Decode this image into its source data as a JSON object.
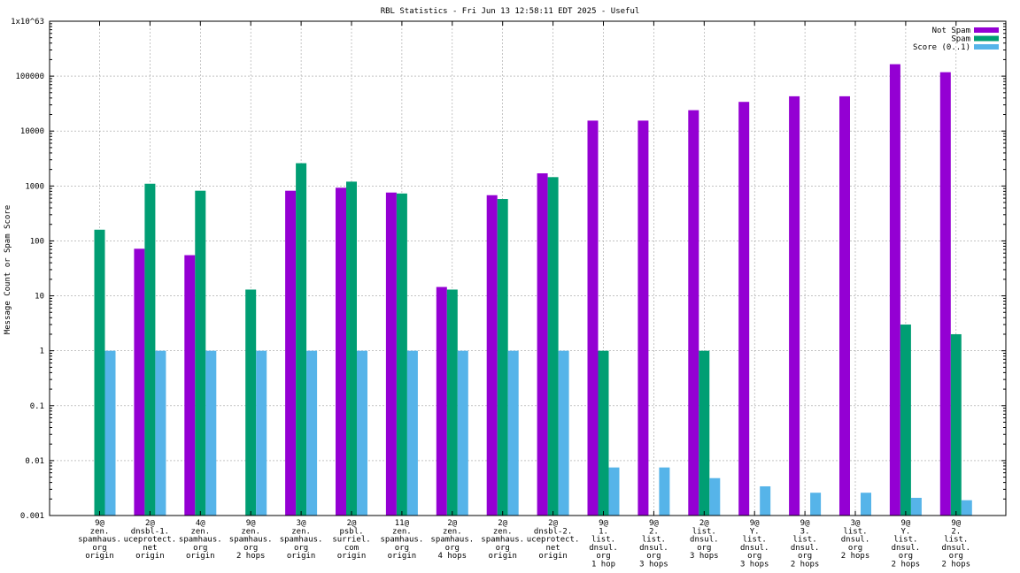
{
  "chart_data": {
    "type": "bar",
    "title": "RBL Statistics - Fri Jun 13 12:58:11 EDT 2025 - Useful",
    "xlabel": "",
    "ylabel": "Message Count or Spam Score",
    "yscale": "log",
    "ylim": [
      0.001,
      1e+63
    ],
    "yticks": [
      "0.001",
      "0.01",
      "0.1",
      "1",
      "10",
      "100",
      "1000",
      "10000",
      "100000",
      "1x10^63"
    ],
    "ytick_values": [
      0.001,
      0.01,
      0.1,
      1,
      10,
      100,
      1000,
      10000,
      100000,
      1e+63
    ],
    "grid": true,
    "legend": "top-right",
    "categories": [
      [
        "9@",
        "zen.",
        "spamhaus.",
        "org",
        "origin"
      ],
      [
        "2@",
        "dnsbl-1.",
        "uceprotect.",
        "net",
        "origin"
      ],
      [
        "4@",
        "zen.",
        "spamhaus.",
        "org",
        "origin"
      ],
      [
        "9@",
        "zen.",
        "spamhaus.",
        "org",
        "2 hops"
      ],
      [
        "3@",
        "zen.",
        "spamhaus.",
        "org",
        "origin"
      ],
      [
        "2@",
        "psbl.",
        "surriel.",
        "com",
        "origin"
      ],
      [
        "11@",
        "zen.",
        "spamhaus.",
        "org",
        "origin"
      ],
      [
        "2@",
        "zen.",
        "spamhaus.",
        "org",
        "4 hops"
      ],
      [
        "2@",
        "zen.",
        "spamhaus.",
        "org",
        "origin"
      ],
      [
        "2@",
        "dnsbl-2.",
        "uceprotect.",
        "net",
        "origin"
      ],
      [
        "9@",
        "1.",
        "list.",
        "dnsul.",
        "org",
        "1 hop"
      ],
      [
        "9@",
        "2.",
        "list.",
        "dnsul.",
        "org",
        "3 hops"
      ],
      [
        "2@",
        "list.",
        "dnsul.",
        "org",
        "3 hops"
      ],
      [
        "9@",
        "Y.",
        "list.",
        "dnsul.",
        "org",
        "3 hops"
      ],
      [
        "9@",
        "3.",
        "list.",
        "dnsul.",
        "org",
        "2 hops"
      ],
      [
        "3@",
        "list.",
        "dnsul.",
        "org",
        "2 hops"
      ],
      [
        "9@",
        "Y.",
        "list.",
        "dnsul.",
        "org",
        "2 hops"
      ],
      [
        "9@",
        "2.",
        "list.",
        "dnsul.",
        "org",
        "2 hops"
      ]
    ],
    "series": [
      {
        "name": "Not Spam",
        "color": "#9400d3",
        "values": [
          null,
          72,
          55,
          null,
          820,
          930,
          760,
          14.5,
          680,
          1700,
          15500,
          15500,
          24000,
          34000,
          43000,
          43000,
          165000,
          118000
        ]
      },
      {
        "name": "Spam",
        "color": "#009e73",
        "values": [
          160,
          1100,
          820,
          13,
          2600,
          1200,
          730,
          13,
          580,
          1450,
          1,
          null,
          1,
          null,
          null,
          null,
          3,
          2
        ]
      },
      {
        "name": "Score (0..1)",
        "color": "#56b4e9",
        "values": [
          1,
          1,
          1,
          1,
          1,
          1,
          1,
          1,
          1,
          1,
          0.0075,
          0.0075,
          0.0048,
          0.0034,
          0.0026,
          0.0026,
          0.0021,
          0.0019
        ]
      }
    ]
  }
}
